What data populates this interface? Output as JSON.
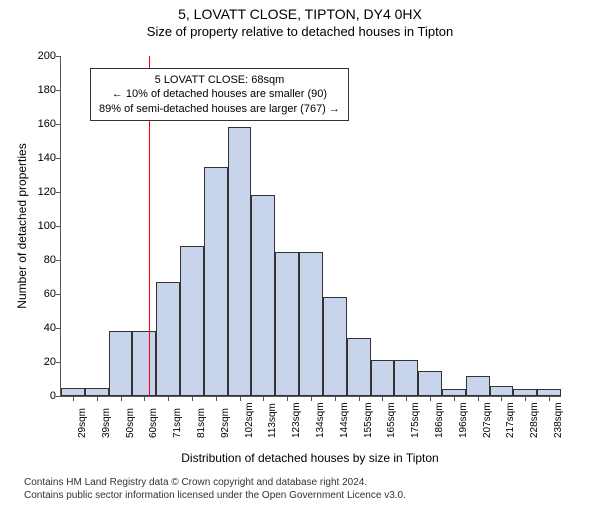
{
  "title": "5, LOVATT CLOSE, TIPTON, DY4 0HX",
  "subtitle": "Size of property relative to detached houses in Tipton",
  "chart": {
    "type": "histogram",
    "ylabel": "Number of detached properties",
    "xlabel": "Distribution of detached houses by size in Tipton",
    "ylim": [
      0,
      200
    ],
    "ytick_step": 20,
    "bar_fill": "#c8d4ec",
    "bar_border": "#333333",
    "ref_line_color": "#ff0000",
    "ref_line_x_category": "68sqm",
    "background_color": "#ffffff",
    "label_fontsize": 12,
    "tick_fontsize": 11,
    "categories": [
      "29sqm",
      "39sqm",
      "50sqm",
      "60sqm",
      "71sqm",
      "81sqm",
      "92sqm",
      "102sqm",
      "113sqm",
      "123sqm",
      "134sqm",
      "144sqm",
      "155sqm",
      "165sqm",
      "175sqm",
      "186sqm",
      "196sqm",
      "207sqm",
      "217sqm",
      "228sqm",
      "238sqm"
    ],
    "values": [
      5,
      5,
      38,
      38,
      67,
      88,
      135,
      158,
      118,
      85,
      85,
      58,
      34,
      21,
      21,
      15,
      4,
      12,
      6,
      4,
      4
    ],
    "ref_line_bin_index": 4
  },
  "annotation": {
    "line1": "5 LOVATT CLOSE: 68sqm",
    "line2": "← 10% of detached houses are smaller (90)",
    "line3": "89% of semi-detached houses are larger (767) →"
  },
  "footer": {
    "line1": "Contains HM Land Registry data © Crown copyright and database right 2024.",
    "line2": "Contains public sector information licensed under the Open Government Licence v3.0."
  }
}
